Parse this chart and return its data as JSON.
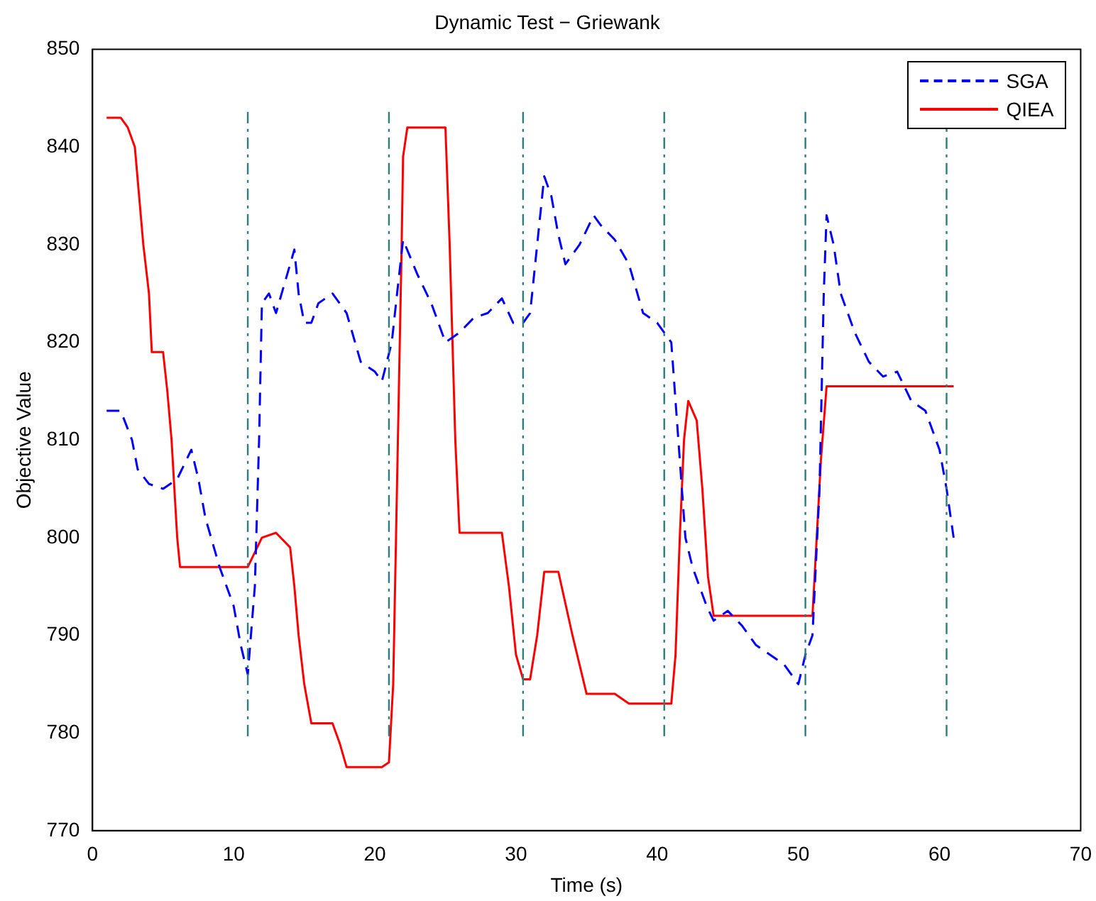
{
  "chart_data": {
    "type": "line",
    "title": "Dynamic Test − Griewank",
    "xlabel": "Time (s)",
    "ylabel": "Objective Value",
    "xlim": [
      0,
      70
    ],
    "xticks": [
      0,
      10,
      20,
      30,
      40,
      50,
      60,
      70
    ],
    "ylim": [
      770,
      850
    ],
    "yticks": [
      770,
      780,
      790,
      800,
      810,
      820,
      830,
      840,
      850
    ],
    "grid": false,
    "legend": "top right",
    "marker": "none",
    "series": [
      {
        "name": "SGA",
        "color": "#0000ff",
        "line_style": "dashed",
        "x": [
          1,
          2,
          2.8,
          3.2,
          4,
          5,
          6,
          7,
          7.5,
          8,
          9,
          9.5,
          10,
          10.5,
          11,
          11.5,
          11.8,
          12,
          12.5,
          13,
          14,
          14.3,
          14.6,
          15,
          15.5,
          16,
          17,
          18,
          19,
          20,
          20.5,
          21.2,
          21.5,
          22,
          23,
          24,
          25,
          25.5,
          26,
          27,
          28,
          29,
          29.8,
          30.5,
          31,
          31.5,
          32,
          32.5,
          33,
          33.5,
          34.5,
          35.5,
          36,
          37,
          38,
          39,
          40,
          41,
          41.5,
          42,
          42.5,
          43.5,
          44,
          45,
          46,
          47,
          48,
          49,
          50,
          50.5,
          51,
          51.5,
          51.8,
          52,
          52.5,
          53,
          54,
          55,
          56,
          57,
          58,
          59,
          60,
          60.5,
          61
        ],
        "values": [
          813,
          813,
          810,
          807,
          805.5,
          805,
          806,
          809,
          806,
          802,
          797,
          795,
          793,
          789,
          786,
          795,
          810,
          824,
          825,
          823,
          828,
          829.5,
          825,
          822,
          822,
          824,
          825,
          823,
          818,
          817,
          816,
          820,
          824,
          830.5,
          827,
          824,
          820,
          820.5,
          821,
          822.5,
          823,
          824.5,
          822,
          822,
          823,
          830,
          837,
          835,
          831,
          828,
          830,
          833,
          832,
          830.5,
          828,
          823,
          822,
          820,
          810,
          800,
          797,
          793,
          791.5,
          792.5,
          791,
          789,
          788,
          787,
          785,
          788,
          790,
          805,
          825,
          833,
          830,
          825,
          821,
          818,
          816.5,
          817,
          814,
          813,
          809,
          805,
          800
        ]
      },
      {
        "name": "QIEA",
        "color": "#ff0000",
        "line_style": "solid",
        "x": [
          1,
          2,
          2.5,
          3,
          3.3,
          3.6,
          4,
          4.2,
          5,
          5.3,
          5.6,
          5.8,
          6,
          6.2,
          8,
          11,
          12,
          13,
          14,
          14.3,
          14.6,
          15,
          15.5,
          17,
          17.5,
          18,
          20.5,
          21,
          21.3,
          21.5,
          21.7,
          21.9,
          22,
          22.3,
          25,
          25.3,
          25.5,
          25.7,
          26,
          29,
          29.5,
          30,
          30.5,
          31,
          31.5,
          32,
          33,
          34,
          35,
          37,
          38,
          41,
          41.3,
          41.6,
          41.9,
          42.2,
          42.8,
          43.2,
          43.6,
          44,
          51,
          51.3,
          51.6,
          52,
          61
        ],
        "values": [
          843,
          843,
          842,
          840,
          835,
          830,
          825,
          819,
          819,
          815,
          810,
          805,
          800,
          797,
          797,
          797,
          800,
          800.5,
          799,
          795,
          790,
          785,
          781,
          781,
          779,
          776.5,
          776.5,
          777,
          785,
          800,
          815,
          830,
          839,
          842,
          842,
          830,
          820,
          810,
          800.5,
          800.5,
          795,
          788,
          785.5,
          785.5,
          790,
          796.5,
          796.5,
          790,
          784,
          784,
          783,
          783,
          788,
          800,
          810,
          814,
          812,
          805,
          796,
          792,
          792,
          800,
          808,
          815.5,
          815.5
        ]
      }
    ],
    "ref_lines": [
      {
        "axis": "x",
        "value": 11,
        "color": "#2e7d7d",
        "line_style": "dashdot"
      },
      {
        "axis": "x",
        "value": 21,
        "color": "#2e7d7d",
        "line_style": "dashdot"
      },
      {
        "axis": "x",
        "value": 30.5,
        "color": "#2e7d7d",
        "line_style": "dashdot"
      },
      {
        "axis": "x",
        "value": 40.5,
        "color": "#2e7d7d",
        "line_style": "dashdot"
      },
      {
        "axis": "x",
        "value": 50.5,
        "color": "#2e7d7d",
        "line_style": "dashdot"
      },
      {
        "axis": "x",
        "value": 60.5,
        "color": "#2e7d7d",
        "line_style": "dashdot"
      }
    ]
  }
}
